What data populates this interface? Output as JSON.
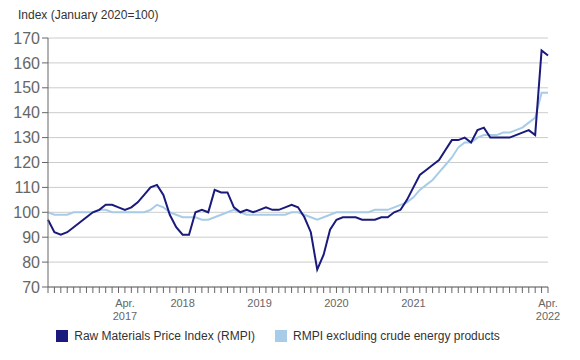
{
  "chart_data": {
    "type": "line",
    "y_label": "Index (January 2020=100)",
    "categories": [
      null,
      null,
      null,
      null,
      null,
      null,
      null,
      null,
      null,
      null,
      null,
      null,
      "Apr.\n2017",
      null,
      null,
      null,
      null,
      null,
      null,
      null,
      null,
      "2018",
      null,
      null,
      null,
      null,
      null,
      null,
      null,
      null,
      null,
      null,
      null,
      "2019",
      null,
      null,
      null,
      null,
      null,
      null,
      null,
      null,
      null,
      null,
      null,
      "2020",
      null,
      null,
      null,
      null,
      null,
      null,
      null,
      null,
      null,
      null,
      null,
      "2021",
      null,
      null,
      null,
      null,
      null,
      null,
      null,
      null,
      null,
      null,
      null,
      null,
      null,
      null,
      null,
      null,
      null,
      null,
      null,
      null,
      "Apr.\n2022"
    ],
    "series": [
      {
        "name": "Raw Materials Price Index (RMPI)",
        "color": "#1a1a7c",
        "values": [
          97,
          92,
          91,
          92,
          94,
          96,
          98,
          100,
          101,
          103,
          103,
          102,
          101,
          102,
          104,
          107,
          110,
          111,
          107,
          99,
          94,
          91,
          91,
          100,
          101,
          100,
          109,
          108,
          108,
          102,
          100,
          101,
          100,
          101,
          102,
          101,
          101,
          102,
          103,
          102,
          98,
          92,
          77,
          83,
          93,
          97,
          98,
          98,
          98,
          97,
          97,
          97,
          98,
          98,
          100,
          101,
          105,
          110,
          115,
          117,
          119,
          121,
          125,
          129,
          129,
          130,
          128,
          133,
          134,
          130,
          130,
          130,
          130,
          131,
          132,
          133,
          131,
          165,
          163
        ]
      },
      {
        "name": "RMPI excluding crude energy products",
        "color": "#a8cce8",
        "values": [
          100,
          99,
          99,
          99,
          100,
          100,
          100,
          100,
          101,
          101,
          100,
          100,
          100,
          100,
          100,
          100,
          101,
          103,
          102,
          100,
          99,
          98,
          98,
          98,
          97,
          97,
          98,
          99,
          100,
          101,
          100,
          99,
          99,
          99,
          99,
          99,
          99,
          99,
          100,
          100,
          99,
          98,
          97,
          98,
          99,
          100,
          100,
          100,
          100,
          100,
          100,
          101,
          101,
          101,
          102,
          103,
          104,
          106,
          109,
          111,
          113,
          116,
          119,
          122,
          126,
          128,
          128,
          130,
          131,
          131,
          131,
          132,
          132,
          133,
          134,
          136,
          138,
          148,
          148
        ]
      }
    ],
    "ylim": [
      70,
      170
    ],
    "yticks": [
      70,
      80,
      90,
      100,
      110,
      120,
      130,
      140,
      150,
      160,
      170
    ],
    "grid": true,
    "legend": "bottom"
  }
}
